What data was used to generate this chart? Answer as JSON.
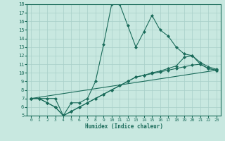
{
  "xlabel": "Humidex (Indice chaleur)",
  "bg_color": "#c8e8e0",
  "grid_color": "#a8cfc8",
  "line_color": "#1a6b5a",
  "xlim": [
    -0.5,
    23.5
  ],
  "ylim": [
    5,
    18
  ],
  "xticks": [
    0,
    1,
    2,
    3,
    4,
    5,
    6,
    7,
    8,
    9,
    10,
    11,
    12,
    13,
    14,
    15,
    16,
    17,
    18,
    19,
    20,
    21,
    22,
    23
  ],
  "yticks": [
    5,
    6,
    7,
    8,
    9,
    10,
    11,
    12,
    13,
    14,
    15,
    16,
    17,
    18
  ],
  "series": [
    {
      "x": [
        0,
        1,
        2,
        3,
        4,
        5,
        6,
        7,
        8,
        9,
        10,
        11,
        12,
        13,
        14,
        15,
        16,
        17,
        18,
        19,
        20,
        21,
        22,
        23
      ],
      "y": [
        7,
        7,
        7,
        7,
        5,
        6.5,
        6.5,
        7,
        9,
        13.3,
        18,
        18,
        15.5,
        13,
        14.8,
        16.7,
        15,
        14.3,
        13,
        12.2,
        12,
        11,
        10.5,
        10.3
      ]
    },
    {
      "x": [
        0,
        1,
        2,
        3,
        4,
        5,
        6,
        7,
        8,
        9,
        10,
        11,
        12,
        13,
        14,
        15,
        16,
        17,
        18,
        19,
        20,
        21,
        22,
        23
      ],
      "y": [
        7,
        7,
        6.5,
        6,
        5,
        5.5,
        6,
        6.5,
        7,
        7.5,
        8,
        8.5,
        9,
        9.5,
        9.7,
        9.9,
        10.1,
        10.3,
        10.5,
        10.7,
        10.9,
        11,
        10.5,
        10.3
      ]
    },
    {
      "x": [
        0,
        1,
        2,
        3,
        4,
        5,
        6,
        7,
        8,
        9,
        10,
        11,
        12,
        13,
        14,
        15,
        16,
        17,
        18,
        19,
        20,
        21,
        22,
        23
      ],
      "y": [
        7,
        7,
        6.5,
        6,
        5,
        5.5,
        6,
        6.5,
        7,
        7.5,
        8,
        8.5,
        9,
        9.5,
        9.7,
        10,
        10.2,
        10.5,
        10.8,
        11.8,
        12,
        11.2,
        10.7,
        10.4
      ]
    },
    {
      "x": [
        0,
        23
      ],
      "y": [
        7,
        10.3
      ]
    }
  ]
}
